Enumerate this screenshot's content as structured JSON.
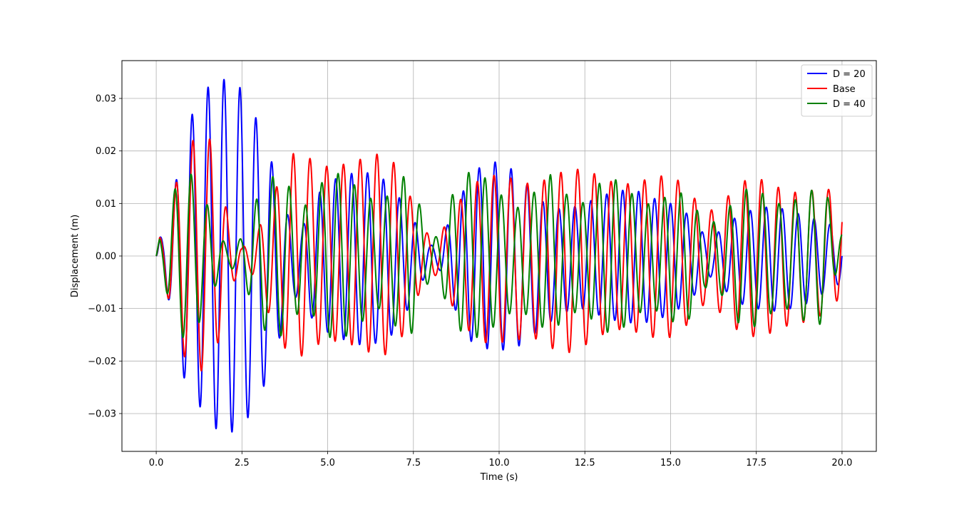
{
  "chart_data": {
    "type": "line",
    "title": "",
    "xlabel": "Time (s)",
    "ylabel": "Displacement  (m)",
    "xlim": [
      -1.0,
      21.0
    ],
    "ylim": [
      -0.0372,
      0.0372
    ],
    "xticks": [
      0.0,
      2.5,
      5.0,
      7.5,
      10.0,
      12.5,
      15.0,
      17.5,
      20.0
    ],
    "xtick_labels": [
      "0.0",
      "2.5",
      "5.0",
      "7.5",
      "10.0",
      "12.5",
      "15.0",
      "17.5",
      "20.0"
    ],
    "yticks": [
      0.03,
      0.02,
      0.01,
      0.0,
      -0.01,
      -0.02,
      -0.03
    ],
    "ytick_labels": [
      "0.03",
      "0.02",
      "0.01",
      "0.00",
      "−0.01",
      "−0.02",
      "−0.03"
    ],
    "grid": true,
    "legend_position": "top-right",
    "series": [
      {
        "name": "D = 20",
        "color": "#0000ff",
        "x": [
          0.0,
          0.1,
          0.2,
          0.4,
          0.67,
          0.8,
          0.95,
          1.1,
          1.35,
          1.6,
          1.85,
          2.1,
          2.25,
          2.5,
          2.75,
          3.0,
          3.25,
          3.5,
          3.75,
          4.0,
          4.25,
          4.5,
          4.75,
          5.0,
          5.5,
          6.0,
          6.5,
          7.0,
          7.5,
          7.75,
          8.0,
          8.25,
          8.5,
          9.0,
          9.5,
          10.0,
          10.5,
          11.0,
          11.5,
          12.0,
          12.5,
          13.0,
          13.5,
          14.0,
          14.5,
          15.0,
          15.5,
          15.75,
          16.0,
          16.25,
          16.5,
          17.0,
          17.5,
          18.0,
          18.5,
          19.0,
          19.5,
          20.0
        ],
        "y": [
          0.0,
          0.0035,
          0.004,
          0.0095,
          0.0168,
          0.021,
          0.025,
          0.028,
          0.0307,
          0.0329,
          0.0337,
          0.0335,
          0.0333,
          0.0317,
          0.0285,
          0.025,
          0.021,
          0.0145,
          0.0088,
          0.006,
          0.0055,
          0.0085,
          0.012,
          0.014,
          0.0155,
          0.016,
          0.0155,
          0.012,
          0.007,
          0.004,
          0.002,
          0.0025,
          0.006,
          0.013,
          0.0175,
          0.018,
          0.016,
          0.012,
          0.009,
          0.009,
          0.01,
          0.0115,
          0.0125,
          0.0125,
          0.011,
          0.01,
          0.008,
          0.006,
          0.004,
          0.004,
          0.005,
          0.008,
          0.009,
          0.0095,
          0.0085,
          0.0075,
          0.0065,
          0.005
        ],
        "fmin": [
          0.0,
          -0.003,
          -0.004,
          -0.0095,
          -0.0197,
          -0.023,
          -0.025,
          -0.028,
          -0.029,
          -0.032,
          -0.0335,
          -0.0335,
          -0.0335,
          -0.0325,
          -0.03,
          -0.027,
          -0.023,
          -0.018,
          -0.012,
          -0.008,
          -0.0075,
          -0.0115,
          -0.0135,
          -0.0145,
          -0.016,
          -0.017,
          -0.0165,
          -0.0145,
          -0.008,
          -0.005,
          -0.002,
          -0.0025,
          -0.006,
          -0.0155,
          -0.0175,
          -0.018,
          -0.0175,
          -0.015,
          -0.0125,
          -0.0105,
          -0.01,
          -0.0115,
          -0.0125,
          -0.0128,
          -0.0125,
          -0.011,
          -0.009,
          -0.007,
          -0.004,
          -0.004,
          -0.006,
          -0.009,
          -0.01,
          -0.0105,
          -0.01,
          -0.009,
          -0.007,
          -0.005
        ]
      },
      {
        "name": "Base",
        "color": "#ff0000",
        "x": [
          0.0,
          0.1,
          0.2,
          0.4,
          0.67,
          0.8,
          0.95,
          1.1,
          1.35,
          1.6,
          1.85,
          2.1,
          2.5,
          2.75,
          3.0,
          3.25,
          3.5,
          3.75,
          4.0,
          4.25,
          4.5,
          5.0,
          5.5,
          6.0,
          6.5,
          7.0,
          7.5,
          7.75,
          8.0,
          8.25,
          8.5,
          9.0,
          9.5,
          10.0,
          10.5,
          11.0,
          11.5,
          12.0,
          12.5,
          13.0,
          13.5,
          14.0,
          14.5,
          15.0,
          15.5,
          16.0,
          16.5,
          17.0,
          17.5,
          18.0,
          18.5,
          19.0,
          19.5,
          20.0
        ],
        "y": [
          0.0,
          0.0035,
          0.004,
          0.0095,
          0.016,
          0.0192,
          0.021,
          0.0222,
          0.0225,
          0.0222,
          0.016,
          0.007,
          0.0015,
          0.0035,
          0.0055,
          0.0095,
          0.013,
          0.0165,
          0.0195,
          0.0195,
          0.0185,
          0.017,
          0.0175,
          0.0185,
          0.0195,
          0.0175,
          0.01,
          0.005,
          0.004,
          0.0035,
          0.007,
          0.012,
          0.015,
          0.0155,
          0.0145,
          0.0135,
          0.015,
          0.0165,
          0.0165,
          0.015,
          0.0135,
          0.014,
          0.015,
          0.0155,
          0.013,
          0.008,
          0.01,
          0.014,
          0.015,
          0.0135,
          0.012,
          0.0125,
          0.0125,
          0.0133
        ],
        "fmin": [
          0.0,
          -0.003,
          -0.004,
          -0.0095,
          -0.017,
          -0.019,
          -0.02,
          -0.021,
          -0.022,
          -0.0205,
          -0.0155,
          -0.007,
          -0.002,
          -0.003,
          -0.0065,
          -0.0105,
          -0.014,
          -0.0175,
          -0.0195,
          -0.019,
          -0.0175,
          -0.016,
          -0.0165,
          -0.0175,
          -0.0195,
          -0.0175,
          -0.011,
          -0.005,
          -0.004,
          -0.0035,
          -0.008,
          -0.0135,
          -0.0165,
          -0.0165,
          -0.016,
          -0.0155,
          -0.0175,
          -0.0185,
          -0.017,
          -0.015,
          -0.014,
          -0.0145,
          -0.0155,
          -0.0155,
          -0.013,
          -0.009,
          -0.011,
          -0.0145,
          -0.0155,
          -0.0145,
          -0.013,
          -0.0125,
          -0.011,
          -0.0075
        ]
      },
      {
        "name": "D = 40",
        "color": "#008000",
        "x": [
          0.0,
          0.1,
          0.2,
          0.4,
          0.67,
          0.8,
          0.95,
          1.1,
          1.35,
          1.6,
          1.85,
          2.1,
          2.5,
          2.75,
          3.0,
          3.25,
          3.5,
          3.75,
          4.0,
          4.25,
          4.5,
          5.0,
          5.5,
          6.0,
          6.5,
          7.0,
          7.25,
          7.5,
          7.75,
          8.0,
          8.25,
          8.5,
          9.0,
          9.5,
          10.0,
          10.5,
          11.0,
          11.5,
          12.0,
          12.5,
          13.0,
          13.5,
          14.0,
          14.5,
          15.0,
          15.5,
          16.0,
          16.5,
          17.0,
          17.5,
          18.0,
          18.5,
          19.0,
          19.5,
          20.0
        ],
        "y": [
          0.0,
          0.0035,
          0.004,
          0.0095,
          0.0155,
          0.016,
          0.016,
          0.015,
          0.012,
          0.008,
          0.004,
          0.0015,
          0.0035,
          0.008,
          0.012,
          0.0145,
          0.0155,
          0.0145,
          0.012,
          0.0095,
          0.01,
          0.016,
          0.0155,
          0.012,
          0.01,
          0.013,
          0.0155,
          0.0145,
          0.008,
          0.004,
          0.0035,
          0.01,
          0.016,
          0.0155,
          0.012,
          0.009,
          0.012,
          0.0155,
          0.0115,
          0.01,
          0.0145,
          0.0145,
          0.011,
          0.0095,
          0.012,
          0.012,
          0.006,
          0.007,
          0.0125,
          0.013,
          0.01,
          0.01,
          0.0125,
          0.0125,
          0.0045
        ],
        "fmin": [
          0.0,
          -0.003,
          -0.004,
          -0.0095,
          -0.0155,
          -0.0155,
          -0.0155,
          -0.0145,
          -0.0115,
          -0.0075,
          -0.004,
          -0.002,
          -0.0035,
          -0.0085,
          -0.0125,
          -0.015,
          -0.016,
          -0.0145,
          -0.012,
          -0.01,
          -0.0105,
          -0.0155,
          -0.0155,
          -0.0125,
          -0.01,
          -0.0135,
          -0.0155,
          -0.0145,
          -0.008,
          -0.004,
          -0.004,
          -0.0105,
          -0.0155,
          -0.0155,
          -0.0125,
          -0.01,
          -0.012,
          -0.015,
          -0.011,
          -0.0105,
          -0.0145,
          -0.0145,
          -0.011,
          -0.01,
          -0.0125,
          -0.0125,
          -0.006,
          -0.0075,
          -0.013,
          -0.0135,
          -0.0105,
          -0.01,
          -0.013,
          -0.013,
          0.002
        ]
      }
    ]
  }
}
